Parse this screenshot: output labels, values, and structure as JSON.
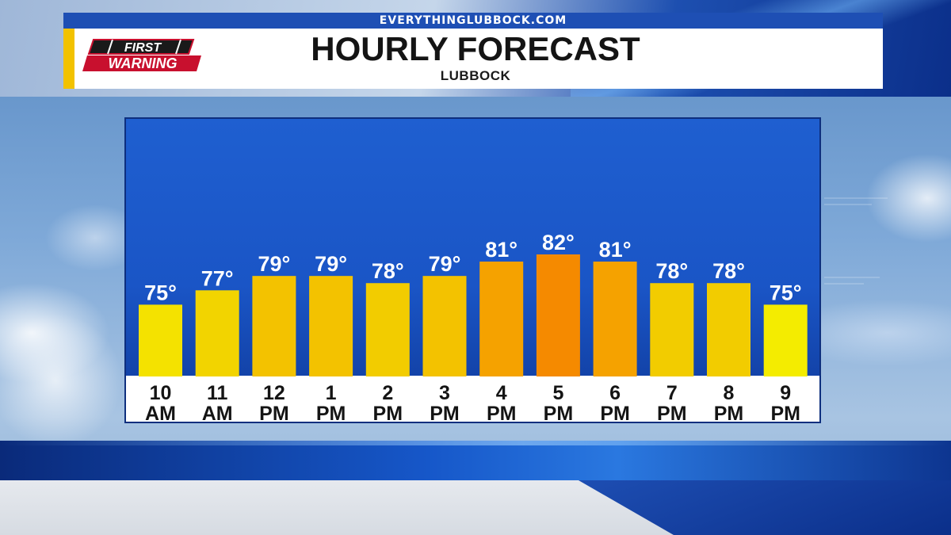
{
  "header": {
    "website": "EVERYTHINGLUBBOCK.COM",
    "logo_line1": "FIRST",
    "logo_line2": "WARNING",
    "title": "HOURLY FORECAST",
    "subtitle": "LUBBOCK"
  },
  "colors": {
    "panel_blue": "#1a55c6",
    "brand_blue": "#1e4fb4",
    "accent_yellow": "#f2c200",
    "logo_red": "#c8102e"
  },
  "chart_data": {
    "type": "bar",
    "categories": [
      "10 AM",
      "11 AM",
      "12 PM",
      "1 PM",
      "2 PM",
      "3 PM",
      "4 PM",
      "5 PM",
      "6 PM",
      "7 PM",
      "8 PM",
      "9 PM"
    ],
    "category_lines": [
      [
        "10",
        "AM"
      ],
      [
        "11",
        "AM"
      ],
      [
        "12",
        "PM"
      ],
      [
        "1",
        "PM"
      ],
      [
        "2",
        "PM"
      ],
      [
        "3",
        "PM"
      ],
      [
        "4",
        "PM"
      ],
      [
        "5",
        "PM"
      ],
      [
        "6",
        "PM"
      ],
      [
        "7",
        "PM"
      ],
      [
        "8",
        "PM"
      ],
      [
        "9",
        "PM"
      ]
    ],
    "values": [
      75,
      77,
      79,
      79,
      78,
      79,
      81,
      82,
      81,
      78,
      78,
      75
    ],
    "value_labels": [
      "75°",
      "77°",
      "79°",
      "79°",
      "78°",
      "79°",
      "81°",
      "82°",
      "81°",
      "78°",
      "78°",
      "75°"
    ],
    "bar_colors": [
      "#f4e200",
      "#f2d400",
      "#f3c200",
      "#f3c200",
      "#f2cc00",
      "#f3c200",
      "#f5a200",
      "#f58a00",
      "#f5a200",
      "#f2cc00",
      "#f2cc00",
      "#f4ec00"
    ],
    "ylim": [
      65,
      82
    ],
    "grid": false,
    "legend": "none"
  }
}
